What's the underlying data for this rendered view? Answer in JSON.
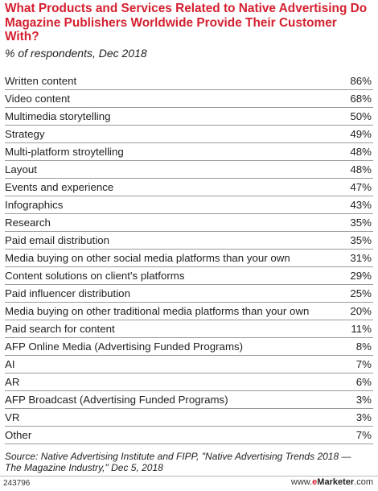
{
  "chart_data": {
    "type": "table",
    "title": "What Products and Services Related to Native Advertising Do Magazine Publishers Worldwide Provide Their Customer With?",
    "subtitle": "% of respondents, Dec 2018",
    "rows": [
      {
        "label": "Written content",
        "value": "86%"
      },
      {
        "label": "Video content",
        "value": "68%"
      },
      {
        "label": "Multimedia storytelling",
        "value": "50%"
      },
      {
        "label": "Strategy",
        "value": "49%"
      },
      {
        "label": "Multi-platform stroytelling",
        "value": "48%"
      },
      {
        "label": "Layout",
        "value": "48%"
      },
      {
        "label": "Events and experience",
        "value": "47%"
      },
      {
        "label": "Infographics",
        "value": "43%"
      },
      {
        "label": "Research",
        "value": "35%"
      },
      {
        "label": "Paid email distribution",
        "value": "35%"
      },
      {
        "label": "Media buying on other social media platforms than your own",
        "value": "31%"
      },
      {
        "label": "Content solutions on client's platforms",
        "value": "29%"
      },
      {
        "label": "Paid influencer distribution",
        "value": "25%"
      },
      {
        "label": "Media buying on other traditional media platforms than your own",
        "value": "20%"
      },
      {
        "label": "Paid search for content",
        "value": "11%"
      },
      {
        "label": "AFP Online Media (Advertising Funded Programs)",
        "value": "8%"
      },
      {
        "label": "AI",
        "value": "7%"
      },
      {
        "label": "AR",
        "value": "6%"
      },
      {
        "label": "AFP Broadcast (Advertising Funded Programs)",
        "value": "3%"
      },
      {
        "label": "VR",
        "value": "3%"
      },
      {
        "label": "Other",
        "value": "7%"
      }
    ],
    "source": "Source: Native Advertising Institute and FIPP, \"Native Advertising Trends 2018 — The Magazine Industry,\" Dec 5, 2018"
  },
  "footer": {
    "chart_id": "243796",
    "brand_prefix": "www.",
    "brand_e": "e",
    "brand_name": "Marketer",
    "brand_suffix": ".com"
  },
  "colors": {
    "title": "#d4202f",
    "rule": "#9a9a9a"
  }
}
